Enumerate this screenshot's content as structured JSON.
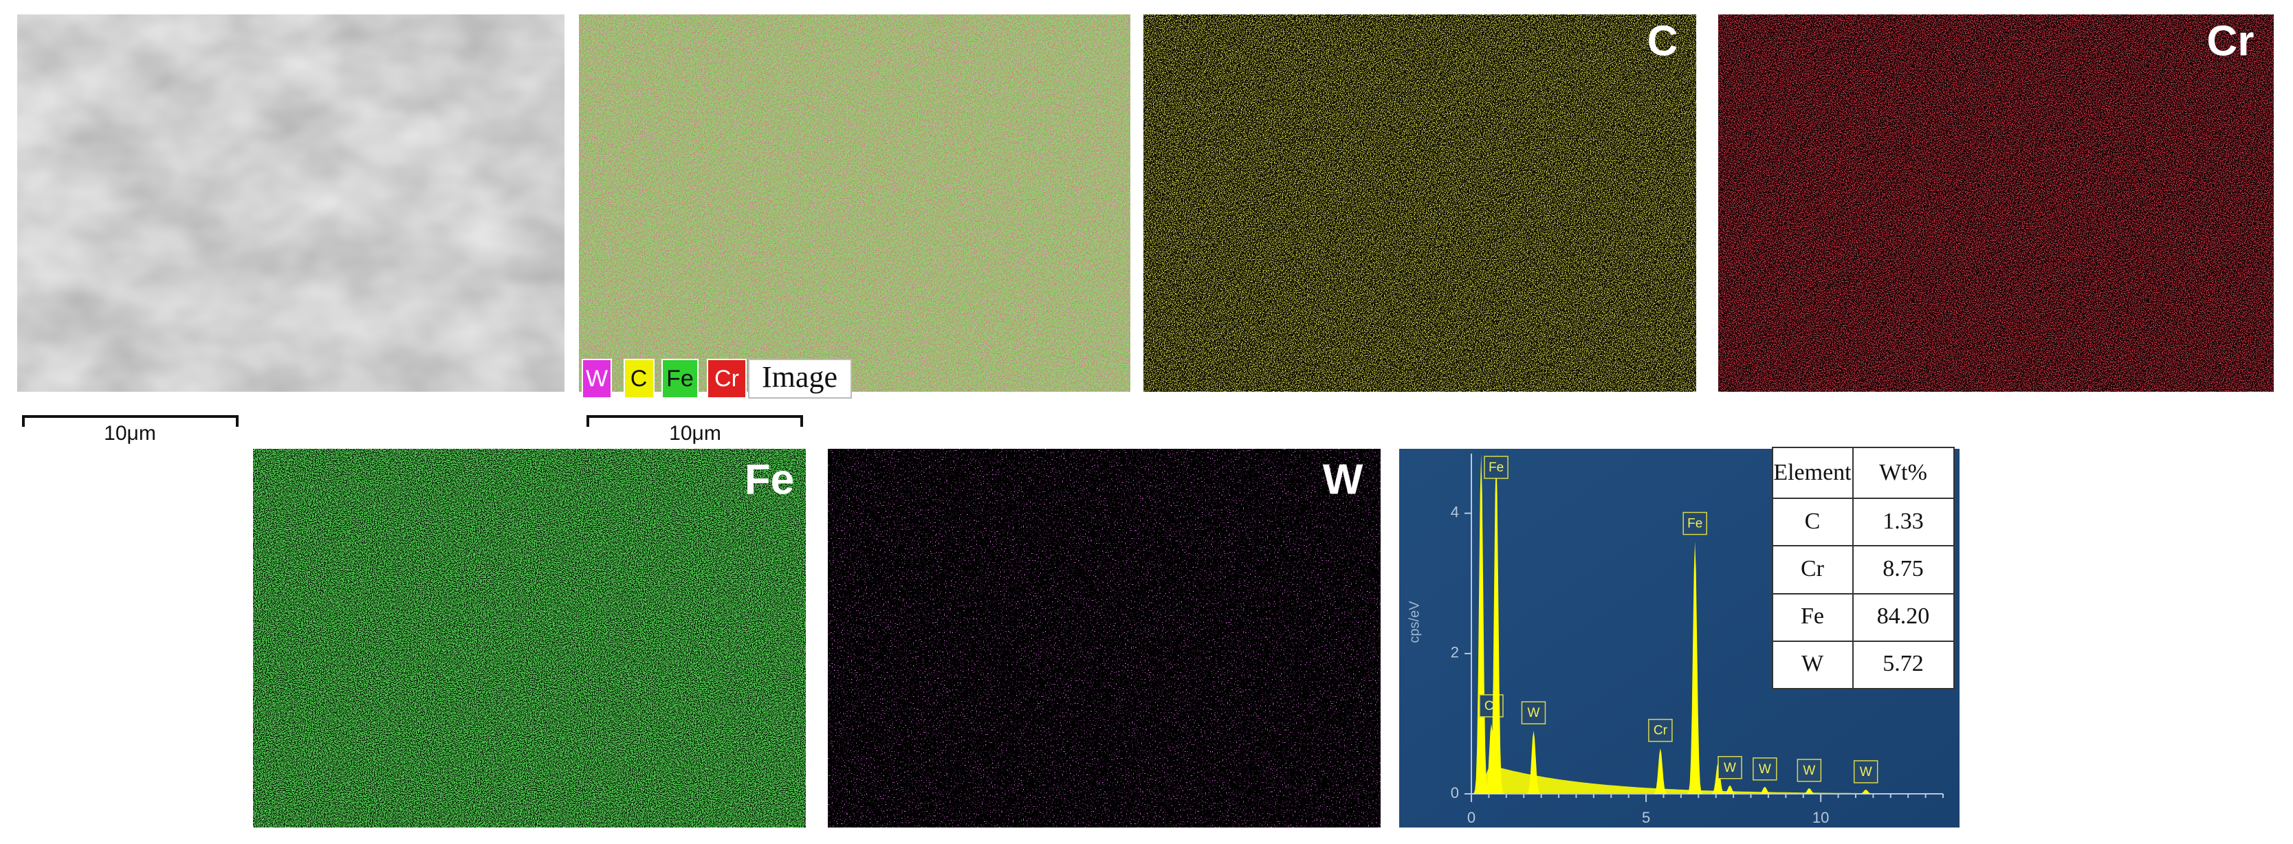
{
  "panels": {
    "sem": {
      "scale_bar": "10μm"
    },
    "mixed": {
      "legend": [
        "W",
        "C",
        "Fe",
        "Cr",
        "Image"
      ],
      "scale_bar": "10μm"
    },
    "maps": [
      {
        "label": "C"
      },
      {
        "label": "Cr"
      },
      {
        "label": "Fe"
      },
      {
        "label": "W"
      }
    ]
  },
  "chart_data": {
    "type": "area",
    "y_label": "cps/eV",
    "xlim": [
      0,
      13.5
    ],
    "ylim": [
      0,
      4.85
    ],
    "xticks": [
      0,
      5,
      10
    ],
    "yticks": [
      0,
      2,
      4
    ],
    "color": "#ffff00",
    "peaks": [
      {
        "x": 0.28,
        "value": 4.85
      },
      {
        "x": 0.57,
        "value": 1.0,
        "label": "Cr"
      },
      {
        "x": 0.71,
        "value": 4.85,
        "label": "Fe"
      },
      {
        "x": 1.78,
        "value": 0.9,
        "label": "W"
      },
      {
        "x": 5.41,
        "value": 0.65,
        "label": "Cr"
      },
      {
        "x": 6.4,
        "value": 3.6,
        "label": "Fe"
      },
      {
        "x": 7.06,
        "value": 0.45
      },
      {
        "x": 7.4,
        "value": 0.12,
        "label": "W"
      },
      {
        "x": 8.4,
        "value": 0.1,
        "label": "W"
      },
      {
        "x": 9.67,
        "value": 0.08,
        "label": "W"
      },
      {
        "x": 11.29,
        "value": 0.06,
        "label": "W"
      }
    ]
  },
  "table": {
    "header": [
      "Element",
      "Wt%"
    ],
    "rows": [
      [
        "C",
        "1.33"
      ],
      [
        "Cr",
        "8.75"
      ],
      [
        "Fe",
        "84.20"
      ],
      [
        "W",
        "5.72"
      ]
    ]
  }
}
